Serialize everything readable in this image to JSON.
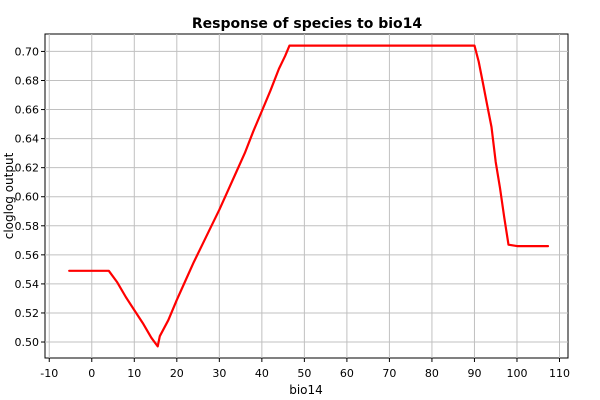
{
  "chart_data": {
    "type": "line",
    "title": "Response of species to bio14",
    "xlabel": "bio14",
    "ylabel": "cloglog output",
    "xlim": [
      -11,
      112
    ],
    "ylim": [
      0.489,
      0.712
    ],
    "x_ticks": [
      -10,
      0,
      10,
      20,
      30,
      40,
      50,
      60,
      70,
      80,
      90,
      100,
      110
    ],
    "y_ticks": [
      0.5,
      0.52,
      0.54,
      0.56,
      0.58,
      0.6,
      0.62,
      0.64,
      0.66,
      0.68,
      0.7
    ],
    "grid": true,
    "legend": "none",
    "series": [
      {
        "color": "#ff0000",
        "x": [
          -5.3,
          4,
          6,
          8,
          10,
          12,
          14,
          15.5,
          16,
          18,
          20,
          22,
          24,
          26,
          28,
          30,
          32,
          34,
          36,
          38,
          40,
          42,
          44,
          45.5,
          46.5,
          90,
          91,
          92,
          93,
          94,
          95,
          96,
          97,
          98,
          100,
          107.3
        ],
        "y": [
          0.549,
          0.549,
          0.541,
          0.531,
          0.522,
          0.513,
          0.503,
          0.497,
          0.504,
          0.515,
          0.529,
          0.542,
          0.555,
          0.567,
          0.579,
          0.591,
          0.604,
          0.617,
          0.63,
          0.645,
          0.659,
          0.673,
          0.688,
          0.697,
          0.704,
          0.704,
          0.693,
          0.678,
          0.663,
          0.648,
          0.624,
          0.606,
          0.586,
          0.567,
          0.566,
          0.566
        ]
      }
    ]
  }
}
